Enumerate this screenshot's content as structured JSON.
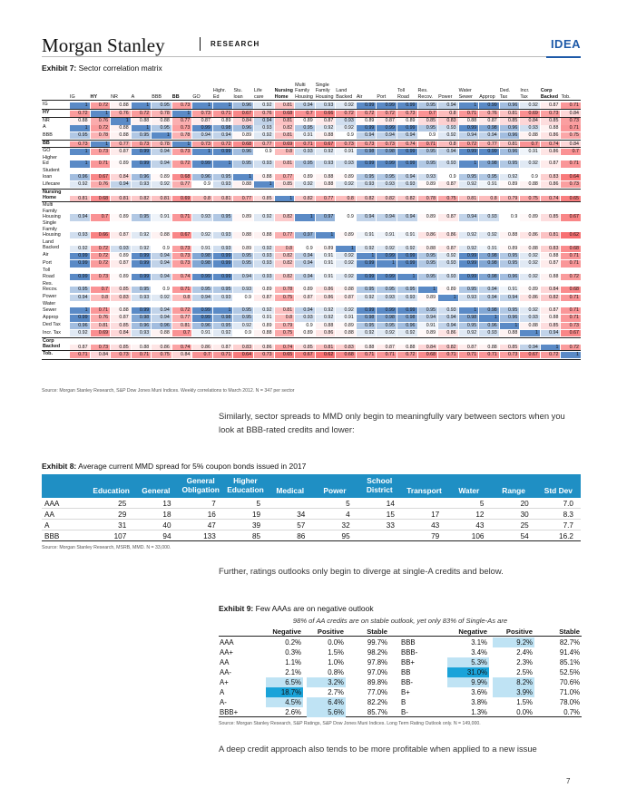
{
  "header": {
    "brand": "Morgan Stanley",
    "section": "RESEARCH",
    "tag": "IDEA"
  },
  "exhibit7": {
    "label": "Exhibit 7:",
    "title": "Sector correlation matrix",
    "column_headers": [
      [
        "IG"
      ],
      [
        "HY"
      ],
      [
        "NR"
      ],
      [
        "A"
      ],
      [
        "BBB"
      ],
      [
        "BB"
      ],
      [
        "GO"
      ],
      [
        "Highr.",
        "Ed"
      ],
      [
        "Stu.",
        "loan"
      ],
      [
        "Life",
        "care"
      ],
      [
        "Nursing",
        "Home"
      ],
      [
        "Multi",
        "Family",
        "Housing"
      ],
      [
        "Single",
        "Family",
        "Housing"
      ],
      [
        "Land",
        "Backed"
      ],
      [
        "Air"
      ],
      [
        "Port"
      ],
      [
        "Toll",
        "Road"
      ],
      [
        "Res.",
        "Recov."
      ],
      [
        "Power"
      ],
      [
        "Water",
        "Sewer"
      ],
      [
        "Approp"
      ],
      [
        "Ded.",
        "Tax"
      ],
      [
        "Incr.",
        "Tax"
      ],
      [
        "Corp",
        "Backed"
      ],
      [
        "Tob."
      ]
    ],
    "bold_columns": [
      1,
      5,
      10,
      23
    ],
    "rows": [
      {
        "label": [
          "IG"
        ],
        "values": [
          "1",
          "0.72",
          "0.88",
          "1",
          "0.95",
          "0.73",
          "1",
          "1",
          "0.96",
          "0.92",
          "0.81",
          "0.94",
          "0.93",
          "0.92",
          "0.99",
          "0.99",
          "0.99",
          "0.95",
          "0.94",
          "1",
          "0.99",
          "0.96",
          "0.92",
          "0.87",
          "0.71"
        ]
      },
      {
        "label": [
          "HY"
        ],
        "bold": true,
        "values": [
          "0.72",
          "1",
          "0.76",
          "0.72",
          "0.78",
          "1",
          "0.73",
          "0.71",
          "0.67",
          "0.76",
          "0.68",
          "0.7",
          "0.66",
          "0.72",
          "0.72",
          "0.72",
          "0.73",
          "0.7",
          "0.8",
          "0.71",
          "0.76",
          "0.81",
          "0.69",
          "0.73",
          "0.84"
        ]
      },
      {
        "label": [
          "NR"
        ],
        "values": [
          "0.88",
          "0.76",
          "1",
          "0.88",
          "0.88",
          "0.77",
          "0.87",
          "0.89",
          "0.84",
          "0.94",
          "0.81",
          "0.89",
          "0.87",
          "0.93",
          "0.89",
          "0.87",
          "0.89",
          "0.85",
          "0.83",
          "0.88",
          "0.87",
          "0.85",
          "0.84",
          "0.85",
          "0.73"
        ]
      },
      {
        "label": [
          "A"
        ],
        "values": [
          "1",
          "0.72",
          "0.88",
          "1",
          "0.95",
          "0.73",
          "0.99",
          "0.98",
          "0.96",
          "0.93",
          "0.82",
          "0.95",
          "0.92",
          "0.92",
          "0.99",
          "0.99",
          "0.99",
          "0.95",
          "0.93",
          "0.99",
          "0.98",
          "0.96",
          "0.93",
          "0.88",
          "0.71"
        ]
      },
      {
        "label": [
          "BBB"
        ],
        "values": [
          "0.95",
          "0.78",
          "0.88",
          "0.95",
          "1",
          "0.78",
          "0.94",
          "0.94",
          "0.89",
          "0.92",
          "0.81",
          "0.91",
          "0.88",
          "0.9",
          "0.94",
          "0.94",
          "0.94",
          "0.9",
          "0.92",
          "0.94",
          "0.94",
          "0.96",
          "0.88",
          "0.86",
          "0.75"
        ]
      },
      {
        "label": [
          "BB"
        ],
        "bold": true,
        "values": [
          "0.73",
          "1",
          "0.77",
          "0.73",
          "0.78",
          "1",
          "0.73",
          "0.72",
          "0.68",
          "0.77",
          "0.69",
          "0.71",
          "0.67",
          "0.73",
          "0.73",
          "0.73",
          "0.74",
          "0.71",
          "0.8",
          "0.72",
          "0.77",
          "0.81",
          "0.7",
          "0.74",
          "0.84"
        ]
      },
      {
        "label": [
          "GO"
        ],
        "values": [
          "1",
          "0.73",
          "0.87",
          "0.99",
          "0.94",
          "0.73",
          "1",
          "0.99",
          "0.96",
          "0.9",
          "0.8",
          "0.93",
          "0.92",
          "0.91",
          "0.98",
          "0.98",
          "0.99",
          "0.95",
          "0.94",
          "0.99",
          "0.99",
          "0.96",
          "0.91",
          "0.86",
          "0.7"
        ]
      },
      {
        "label": [
          "Higher",
          "Ed"
        ],
        "values": [
          "1",
          "0.71",
          "0.89",
          "0.99",
          "0.94",
          "0.72",
          "0.99",
          "1",
          "0.95",
          "0.93",
          "0.81",
          "0.95",
          "0.93",
          "0.93",
          "0.99",
          "0.99",
          "0.99",
          "0.95",
          "0.93",
          "1",
          "0.98",
          "0.95",
          "0.92",
          "0.87",
          "0.71"
        ]
      },
      {
        "label": [
          "Student",
          "loan"
        ],
        "values": [
          "0.96",
          "0.67",
          "0.84",
          "0.96",
          "0.89",
          "0.68",
          "0.96",
          "0.95",
          "1",
          "0.88",
          "0.77",
          "0.89",
          "0.88",
          "0.89",
          "0.95",
          "0.95",
          "0.94",
          "0.93",
          "0.9",
          "0.95",
          "0.95",
          "0.92",
          "0.9",
          "0.83",
          "0.64"
        ]
      },
      {
        "label": [
          "Lifecare"
        ],
        "values": [
          "0.92",
          "0.76",
          "0.94",
          "0.93",
          "0.92",
          "0.77",
          "0.9",
          "0.93",
          "0.88",
          "1",
          "0.85",
          "0.92",
          "0.88",
          "0.92",
          "0.93",
          "0.93",
          "0.93",
          "0.89",
          "0.87",
          "0.92",
          "0.91",
          "0.89",
          "0.88",
          "0.86",
          "0.73"
        ]
      },
      {
        "label": [
          "Nursing",
          "Home"
        ],
        "bold": true,
        "values": [
          "0.81",
          "0.68",
          "0.81",
          "0.82",
          "0.81",
          "0.69",
          "0.8",
          "0.81",
          "0.77",
          "0.85",
          "1",
          "0.82",
          "0.77",
          "0.8",
          "0.82",
          "0.82",
          "0.82",
          "0.78",
          "0.75",
          "0.81",
          "0.8",
          "0.79",
          "0.75",
          "0.74",
          "0.65"
        ]
      },
      {
        "label": [
          "Multi",
          "Family",
          "Housing"
        ],
        "values": [
          "0.94",
          "0.7",
          "0.89",
          "0.95",
          "0.91",
          "0.71",
          "0.93",
          "0.95",
          "0.89",
          "0.92",
          "0.82",
          "1",
          "0.97",
          "0.9",
          "0.94",
          "0.94",
          "0.94",
          "0.89",
          "0.87",
          "0.94",
          "0.93",
          "0.9",
          "0.89",
          "0.85",
          "0.67"
        ]
      },
      {
        "label": [
          "Single",
          "Family",
          "Housing"
        ],
        "values": [
          "0.93",
          "0.66",
          "0.87",
          "0.92",
          "0.88",
          "0.67",
          "0.92",
          "0.93",
          "0.88",
          "0.88",
          "0.77",
          "0.97",
          "1",
          "0.89",
          "0.91",
          "0.91",
          "0.91",
          "0.86",
          "0.86",
          "0.92",
          "0.92",
          "0.88",
          "0.86",
          "0.81",
          "0.62"
        ]
      },
      {
        "label": [
          "Land",
          "Backed"
        ],
        "values": [
          "0.92",
          "0.72",
          "0.93",
          "0.92",
          "0.9",
          "0.73",
          "0.91",
          "0.93",
          "0.89",
          "0.92",
          "0.8",
          "0.9",
          "0.89",
          "1",
          "0.92",
          "0.92",
          "0.92",
          "0.88",
          "0.87",
          "0.92",
          "0.91",
          "0.89",
          "0.88",
          "0.83",
          "0.68"
        ]
      },
      {
        "label": [
          "Air"
        ],
        "values": [
          "0.99",
          "0.72",
          "0.89",
          "0.99",
          "0.94",
          "0.73",
          "0.98",
          "0.99",
          "0.95",
          "0.93",
          "0.82",
          "0.94",
          "0.91",
          "0.92",
          "1",
          "0.99",
          "0.99",
          "0.95",
          "0.92",
          "0.99",
          "0.98",
          "0.95",
          "0.92",
          "0.88",
          "0.71"
        ]
      },
      {
        "label": [
          "Port"
        ],
        "values": [
          "0.99",
          "0.72",
          "0.87",
          "0.99",
          "0.94",
          "0.73",
          "0.98",
          "0.99",
          "0.95",
          "0.93",
          "0.82",
          "0.94",
          "0.91",
          "0.92",
          "0.99",
          "1",
          "0.99",
          "0.95",
          "0.93",
          "0.99",
          "0.98",
          "0.95",
          "0.92",
          "0.87",
          "0.71"
        ]
      },
      {
        "label": [
          "Toll",
          "Road"
        ],
        "values": [
          "0.99",
          "0.73",
          "0.89",
          "0.99",
          "0.94",
          "0.74",
          "0.99",
          "0.99",
          "0.94",
          "0.93",
          "0.82",
          "0.94",
          "0.91",
          "0.92",
          "0.99",
          "0.99",
          "1",
          "0.95",
          "0.93",
          "0.99",
          "0.98",
          "0.96",
          "0.92",
          "0.88",
          "0.72"
        ]
      },
      {
        "label": [
          "Res.",
          "Recov."
        ],
        "values": [
          "0.95",
          "0.7",
          "0.85",
          "0.95",
          "0.9",
          "0.71",
          "0.95",
          "0.95",
          "0.93",
          "0.89",
          "0.78",
          "0.89",
          "0.86",
          "0.88",
          "0.95",
          "0.95",
          "0.95",
          "1",
          "0.89",
          "0.95",
          "0.94",
          "0.91",
          "0.89",
          "0.84",
          "0.68"
        ]
      },
      {
        "label": [
          "Power"
        ],
        "values": [
          "0.94",
          "0.8",
          "0.83",
          "0.93",
          "0.92",
          "0.8",
          "0.94",
          "0.93",
          "0.9",
          "0.87",
          "0.75",
          "0.87",
          "0.86",
          "0.87",
          "0.92",
          "0.93",
          "0.93",
          "0.89",
          "1",
          "0.93",
          "0.94",
          "0.94",
          "0.86",
          "0.82",
          "0.71"
        ]
      },
      {
        "label": [
          "Water",
          "Sewer"
        ],
        "values": [
          "1",
          "0.71",
          "0.88",
          "0.99",
          "0.94",
          "0.72",
          "0.99",
          "1",
          "0.95",
          "0.92",
          "0.81",
          "0.94",
          "0.92",
          "0.92",
          "0.99",
          "0.99",
          "0.99",
          "0.95",
          "0.93",
          "1",
          "0.98",
          "0.95",
          "0.92",
          "0.87",
          "0.71"
        ]
      },
      {
        "label": [
          "Approp"
        ],
        "values": [
          "0.99",
          "0.76",
          "0.87",
          "0.98",
          "0.94",
          "0.77",
          "0.99",
          "0.98",
          "0.95",
          "0.91",
          "0.8",
          "0.93",
          "0.92",
          "0.91",
          "0.98",
          "0.98",
          "0.98",
          "0.94",
          "0.94",
          "0.98",
          "1",
          "0.96",
          "0.93",
          "0.88",
          "0.71"
        ]
      },
      {
        "label": [
          "Ded Tax"
        ],
        "values": [
          "0.96",
          "0.81",
          "0.85",
          "0.96",
          "0.96",
          "0.81",
          "0.96",
          "0.95",
          "0.92",
          "0.89",
          "0.79",
          "0.9",
          "0.88",
          "0.89",
          "0.95",
          "0.95",
          "0.96",
          "0.91",
          "0.94",
          "0.95",
          "0.96",
          "1",
          "0.88",
          "0.85",
          "0.73"
        ]
      },
      {
        "label": [
          "Incr. Tax"
        ],
        "values": [
          "0.92",
          "0.69",
          "0.84",
          "0.93",
          "0.88",
          "0.7",
          "0.91",
          "0.92",
          "0.9",
          "0.88",
          "0.75",
          "0.89",
          "0.86",
          "0.88",
          "0.92",
          "0.92",
          "0.92",
          "0.89",
          "0.86",
          "0.92",
          "0.93",
          "0.88",
          "1",
          "0.94",
          "0.67"
        ]
      },
      {
        "label": [
          "Corp",
          "Backed"
        ],
        "bold": true,
        "values": [
          "0.87",
          "0.73",
          "0.85",
          "0.88",
          "0.86",
          "0.74",
          "0.86",
          "0.87",
          "0.83",
          "0.86",
          "0.74",
          "0.85",
          "0.81",
          "0.83",
          "0.88",
          "0.87",
          "0.88",
          "0.84",
          "0.82",
          "0.87",
          "0.88",
          "0.85",
          "0.94",
          "1",
          "0.72"
        ]
      },
      {
        "label": [
          "Tob."
        ],
        "bold": true,
        "values": [
          "0.71",
          "0.84",
          "0.73",
          "0.71",
          "0.75",
          "0.84",
          "0.7",
          "0.71",
          "0.64",
          "0.73",
          "0.65",
          "0.67",
          "0.62",
          "0.68",
          "0.71",
          "0.71",
          "0.72",
          "0.68",
          "0.71",
          "0.71",
          "0.71",
          "0.73",
          "0.67",
          "0.72",
          "1"
        ]
      }
    ],
    "source": "Source: Morgan Stanley Research, S&P Dow Jones Muni Indices. Weekly correlations to March 2012. N = 347 per sector"
  },
  "paragraph1": "Similarly, sector spreads to MMD only begin to meaningfully vary between sectors when you look at BBB-rated credits and lower:",
  "exhibit8": {
    "label": "Exhibit 8:",
    "title": "Average current MMD spread for 5% coupon bonds issued in 2017",
    "headers": [
      [
        "Education"
      ],
      [
        "General"
      ],
      [
        "General",
        "Obligation"
      ],
      [
        "Higher",
        "Education"
      ],
      [
        "Medical"
      ],
      [
        "Power"
      ],
      [
        "School",
        "District"
      ],
      [
        "Transport"
      ],
      [
        "Water"
      ],
      [
        "Range"
      ],
      [
        "Std Dev"
      ]
    ],
    "rows": [
      {
        "rating": "AAA",
        "values": [
          "25",
          "13",
          "7",
          "5",
          "",
          "5",
          "14",
          "",
          "5",
          "20",
          "7.0"
        ]
      },
      {
        "rating": "AA",
        "values": [
          "29",
          "18",
          "16",
          "19",
          "34",
          "4",
          "15",
          "17",
          "12",
          "30",
          "8.3"
        ]
      },
      {
        "rating": "A",
        "values": [
          "31",
          "40",
          "47",
          "39",
          "57",
          "32",
          "33",
          "43",
          "43",
          "25",
          "7.7"
        ]
      },
      {
        "rating": "BBB",
        "values": [
          "107",
          "94",
          "133",
          "85",
          "86",
          "95",
          "",
          "79",
          "106",
          "54",
          "16.2"
        ]
      }
    ],
    "source": "Source: Morgan Stanley Research, MSRB, MMD. N = 33,000."
  },
  "paragraph2": "Further, ratings outlooks only begin to diverge at single-A credits and below.",
  "exhibit9": {
    "label": "Exhibit 9:",
    "title": "Few AAAs are on negative outlook",
    "subtitle": "98% of AA credits are on stable outlook, yet only 83% of Single-As are",
    "headers": [
      "Negative",
      "Positive",
      "Stable",
      "Negative",
      "Positive",
      "Stable"
    ],
    "rows": [
      {
        "left": [
          "AAA",
          "0.2%",
          "0.0%",
          "99.7%"
        ],
        "right": [
          "BBB",
          "3.1%",
          "9.2%",
          "82.7%"
        ]
      },
      {
        "left": [
          "AA+",
          "0.3%",
          "1.5%",
          "98.2%"
        ],
        "right": [
          "BBB-",
          "3.4%",
          "2.4%",
          "91.4%"
        ]
      },
      {
        "left": [
          "AA",
          "1.1%",
          "1.0%",
          "97.8%"
        ],
        "right": [
          "BB+",
          "5.3%",
          "2.3%",
          "85.1%"
        ]
      },
      {
        "left": [
          "AA-",
          "2.1%",
          "0.8%",
          "97.0%"
        ],
        "right": [
          "BB",
          "31.0%",
          "2.5%",
          "52.5%"
        ]
      },
      {
        "left": [
          "A+",
          "6.5%",
          "3.2%",
          "89.8%"
        ],
        "right": [
          "BB-",
          "9.9%",
          "8.2%",
          "70.6%"
        ]
      },
      {
        "left": [
          "A",
          "18.7%",
          "2.7%",
          "77.0%"
        ],
        "right": [
          "B+",
          "3.6%",
          "3.9%",
          "71.0%"
        ]
      },
      {
        "left": [
          "A-",
          "4.5%",
          "6.4%",
          "82.2%"
        ],
        "right": [
          "B",
          "3.8%",
          "1.5%",
          "78.0%"
        ]
      },
      {
        "left": [
          "BBB+",
          "2.6%",
          "5.6%",
          "85.7%"
        ],
        "right": [
          "B-",
          "1.3%",
          "0.0%",
          "0.7%"
        ]
      }
    ],
    "source": "Source: Morgan Stanley Research, S&P Ratings, S&P Dow Jones Muni Indices. Long Term Rating Outlook only. N = 149,000."
  },
  "paragraph3": "A deep credit approach also tends to be more profitable when applied to a new issue",
  "page_number": "7",
  "colors": {
    "accent": "#1e5aa8",
    "table_header": "#1f8fc4",
    "heat_low": "#f8696b",
    "heat_mid": "#ffffff",
    "heat_high": "#5a8ac6",
    "scale_blue_strong": "#1aa3d9",
    "scale_blue_light": "#bfe3f4"
  }
}
